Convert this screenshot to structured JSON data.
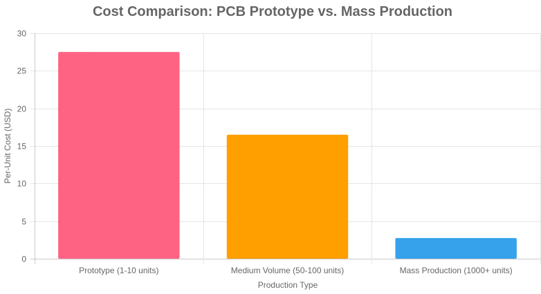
{
  "chart_data": {
    "type": "bar",
    "title": "Cost Comparison: PCB Prototype vs. Mass Production",
    "xlabel": "Production Type",
    "ylabel": "Per-Unit Cost (USD)",
    "categories": [
      "Prototype (1-10 units)",
      "Medium Volume (50-100 units)",
      "Mass Production (1000+ units)"
    ],
    "values": [
      27.5,
      16.5,
      2.75
    ],
    "colors": [
      "#ff6384",
      "#ff9f00",
      "#36a2eb"
    ],
    "ylim": [
      0,
      30
    ],
    "yticks": [
      0,
      5,
      10,
      15,
      20,
      25,
      30
    ],
    "grid": true,
    "legend": "none"
  }
}
